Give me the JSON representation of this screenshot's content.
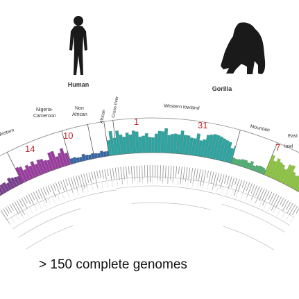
{
  "species": {
    "human": {
      "label": "Human",
      "icon": "human-silhouette-icon"
    },
    "gorilla": {
      "label": "Gorilla",
      "icon": "gorilla-silhouette-icon"
    }
  },
  "groups": [
    {
      "key": "western",
      "label": "Western",
      "count": "14"
    },
    {
      "key": "nigeria",
      "label": "Nigeria-Cameroon",
      "count": "10"
    },
    {
      "key": "nonafrican",
      "label": "Non African",
      "count": ""
    },
    {
      "key": "african",
      "label": "African",
      "count": ""
    },
    {
      "key": "crossriver",
      "label": "Cross river",
      "count": "1"
    },
    {
      "key": "westernlowland",
      "label": "Western lowland",
      "count": "31"
    },
    {
      "key": "mountain",
      "label": "Mountain",
      "count": ""
    },
    {
      "key": "eastern",
      "label": "Eastern lowland",
      "count": "7"
    }
  ],
  "caption": "> 150 complete genomes",
  "colors": {
    "purple": "#7a3f91",
    "magenta": "#9b3aa0",
    "blue": "#3566a8",
    "teal": "#2aa5a1",
    "green": "#4fb071",
    "lime": "#8ec63f",
    "red": "#c0262b"
  }
}
